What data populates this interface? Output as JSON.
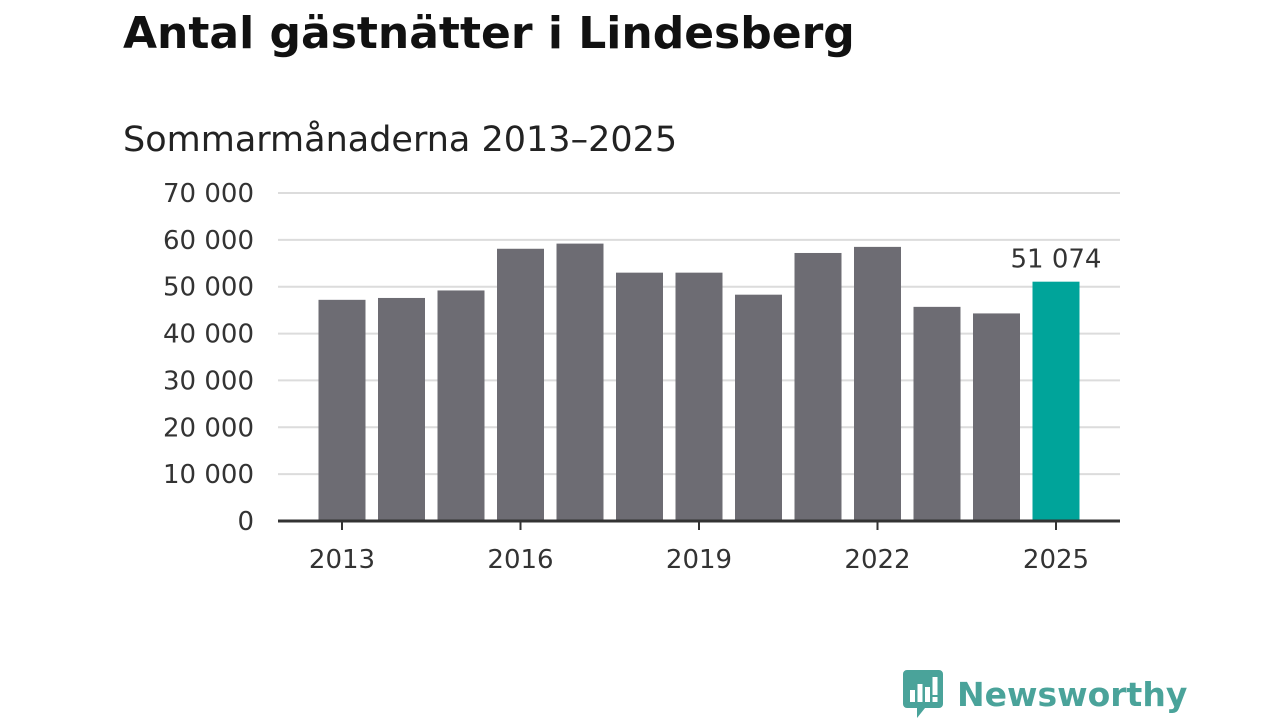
{
  "title": "Antal gästnätter i Lindesberg",
  "subtitle": "Sommarmånaderna 2013–2025",
  "brand": {
    "name": "Newsworthy",
    "icon": "newsworthy-logo-icon"
  },
  "colors": {
    "bar": "#6d6c73",
    "highlight": "#00a49a",
    "grid": "#dcdcdc",
    "axis": "#333333",
    "brand": "#4aa39a"
  },
  "chart_data": {
    "type": "bar",
    "title": "Antal gästnätter i Lindesberg",
    "subtitle": "Sommarmånaderna 2013–2025",
    "categories": [
      "2013",
      "2014",
      "2015",
      "2016",
      "2017",
      "2018",
      "2019",
      "2020",
      "2021",
      "2022",
      "2023",
      "2024",
      "2025"
    ],
    "values": [
      47200,
      47600,
      49200,
      58100,
      59200,
      53000,
      53000,
      48300,
      57200,
      58500,
      45700,
      44300,
      51074
    ],
    "highlight_category": "2025",
    "data_labels": [
      {
        "category": "2025",
        "label": "51 074"
      }
    ],
    "x_tick_labels": [
      "2013",
      "2016",
      "2019",
      "2022",
      "2025"
    ],
    "y_ticks": [
      0,
      10000,
      20000,
      30000,
      40000,
      50000,
      60000,
      70000
    ],
    "y_tick_labels": [
      "0",
      "10 000",
      "20 000",
      "30 000",
      "40 000",
      "50 000",
      "60 000",
      "70 000"
    ],
    "ylim": [
      0,
      70000
    ],
    "xlabel": "",
    "ylabel": "",
    "grid": true,
    "legend": "none"
  }
}
